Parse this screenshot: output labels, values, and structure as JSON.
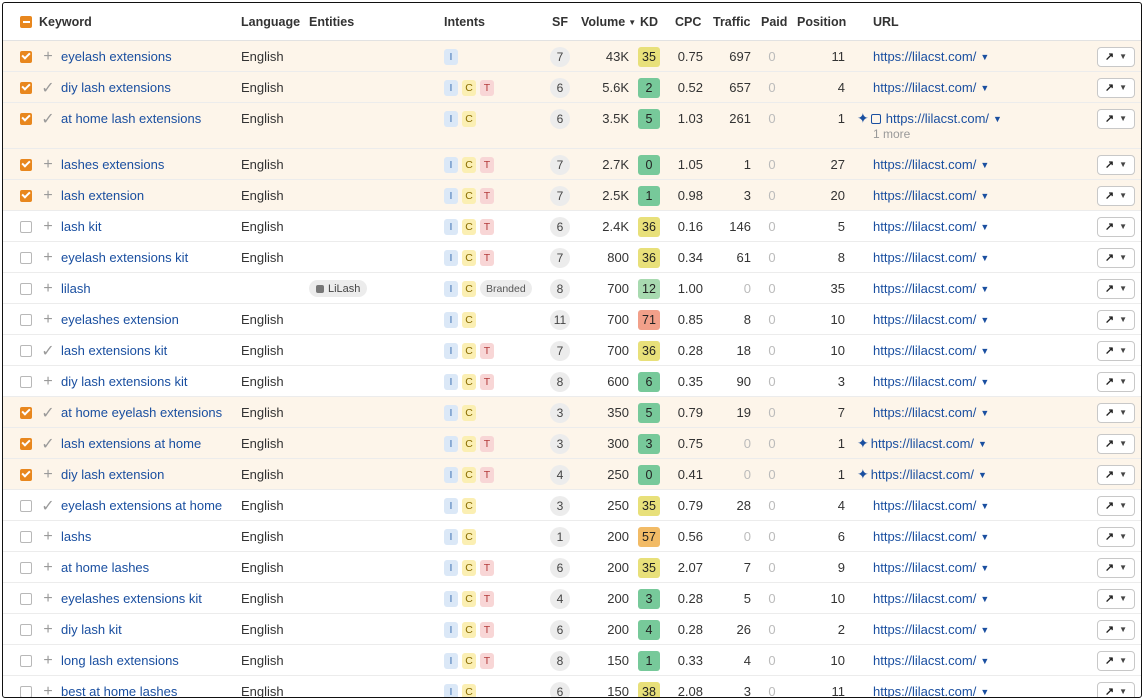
{
  "header": {
    "keyword": "Keyword",
    "language": "Language",
    "entities": "Entities",
    "intents": "Intents",
    "sf": "SF",
    "volume": "Volume",
    "kd": "KD",
    "cpc": "CPC",
    "traffic": "Traffic",
    "paid": "Paid",
    "position": "Position",
    "url": "URL"
  },
  "colors": {
    "selected_row": "#fdf5ea",
    "checkbox": "#e8871e",
    "link": "#1a4fa0",
    "kd_green": "#77c99a",
    "kd_lightgreen": "#a8dab0",
    "kd_yellow": "#e8e07a",
    "kd_orange": "#f2bb66",
    "kd_red": "#f2a08a"
  },
  "rows": [
    {
      "checked": true,
      "action": "plus",
      "keyword": "eyelash extensions",
      "language": "English",
      "entity": "",
      "intents": [
        "I"
      ],
      "sf": "7",
      "volume": "43K",
      "kd": "35",
      "kd_color": "#e8e07a",
      "cpc": "0.75",
      "traffic": "697",
      "paid": "0",
      "position": "11",
      "url": "https://lilacst.com/",
      "sparkle": false
    },
    {
      "checked": true,
      "action": "check",
      "keyword": "diy lash extensions",
      "language": "English",
      "entity": "",
      "intents": [
        "I",
        "C",
        "T"
      ],
      "sf": "6",
      "volume": "5.6K",
      "kd": "2",
      "kd_color": "#77c99a",
      "cpc": "0.52",
      "traffic": "657",
      "paid": "0",
      "position": "4",
      "url": "https://lilacst.com/",
      "sparkle": false
    },
    {
      "checked": true,
      "action": "check",
      "keyword": "at home lash extensions",
      "language": "English",
      "entity": "",
      "intents": [
        "I",
        "C"
      ],
      "sf": "6",
      "volume": "3.5K",
      "kd": "5",
      "kd_color": "#77c99a",
      "cpc": "1.03",
      "traffic": "261",
      "paid": "0",
      "position": "1",
      "url": "https://lilacst.com/",
      "sparkle": true,
      "image": true,
      "more": "1 more"
    },
    {
      "checked": true,
      "action": "plus",
      "keyword": "lashes extensions",
      "language": "English",
      "entity": "",
      "intents": [
        "I",
        "C",
        "T"
      ],
      "sf": "7",
      "volume": "2.7K",
      "kd": "0",
      "kd_color": "#77c99a",
      "cpc": "1.05",
      "traffic": "1",
      "paid": "0",
      "position": "27",
      "url": "https://lilacst.com/",
      "sparkle": false
    },
    {
      "checked": true,
      "action": "plus",
      "keyword": "lash extension",
      "language": "English",
      "entity": "",
      "intents": [
        "I",
        "C",
        "T"
      ],
      "sf": "7",
      "volume": "2.5K",
      "kd": "1",
      "kd_color": "#77c99a",
      "cpc": "0.98",
      "traffic": "3",
      "paid": "0",
      "position": "20",
      "url": "https://lilacst.com/",
      "sparkle": false
    },
    {
      "checked": false,
      "action": "plus",
      "keyword": "lash kit",
      "language": "English",
      "entity": "",
      "intents": [
        "I",
        "C",
        "T"
      ],
      "sf": "6",
      "volume": "2.4K",
      "kd": "36",
      "kd_color": "#e8e07a",
      "cpc": "0.16",
      "traffic": "146",
      "paid": "0",
      "position": "5",
      "url": "https://lilacst.com/",
      "sparkle": false
    },
    {
      "checked": false,
      "action": "plus",
      "keyword": "eyelash extensions kit",
      "language": "English",
      "entity": "",
      "intents": [
        "I",
        "C",
        "T"
      ],
      "sf": "7",
      "volume": "800",
      "kd": "36",
      "kd_color": "#e8e07a",
      "cpc": "0.34",
      "traffic": "61",
      "paid": "0",
      "position": "8",
      "url": "https://lilacst.com/",
      "sparkle": false
    },
    {
      "checked": false,
      "action": "plus",
      "keyword": "lilash",
      "language": "",
      "entity": "LiLash",
      "intents": [
        "I",
        "C",
        "Branded"
      ],
      "sf": "8",
      "volume": "700",
      "kd": "12",
      "kd_color": "#a8dab0",
      "cpc": "1.00",
      "traffic": "0",
      "traffic_dim": true,
      "paid": "0",
      "position": "35",
      "url": "https://lilacst.com/",
      "sparkle": false
    },
    {
      "checked": false,
      "action": "plus",
      "keyword": "eyelashes extension",
      "language": "English",
      "entity": "",
      "intents": [
        "I",
        "C"
      ],
      "sf": "11",
      "volume": "700",
      "kd": "71",
      "kd_color": "#f2a08a",
      "cpc": "0.85",
      "traffic": "8",
      "paid": "0",
      "position": "10",
      "url": "https://lilacst.com/",
      "sparkle": false
    },
    {
      "checked": false,
      "action": "check",
      "keyword": "lash extensions kit",
      "language": "English",
      "entity": "",
      "intents": [
        "I",
        "C",
        "T"
      ],
      "sf": "7",
      "volume": "700",
      "kd": "36",
      "kd_color": "#e8e07a",
      "cpc": "0.28",
      "traffic": "18",
      "paid": "0",
      "position": "10",
      "url": "https://lilacst.com/",
      "sparkle": false
    },
    {
      "checked": false,
      "action": "plus",
      "keyword": "diy lash extensions kit",
      "language": "English",
      "entity": "",
      "intents": [
        "I",
        "C",
        "T"
      ],
      "sf": "8",
      "volume": "600",
      "kd": "6",
      "kd_color": "#77c99a",
      "cpc": "0.35",
      "traffic": "90",
      "paid": "0",
      "position": "3",
      "url": "https://lilacst.com/",
      "sparkle": false
    },
    {
      "checked": true,
      "action": "check",
      "keyword": "at home eyelash extensions",
      "language": "English",
      "entity": "",
      "intents": [
        "I",
        "C"
      ],
      "sf": "3",
      "volume": "350",
      "kd": "5",
      "kd_color": "#77c99a",
      "cpc": "0.79",
      "traffic": "19",
      "paid": "0",
      "position": "7",
      "url": "https://lilacst.com/",
      "sparkle": false
    },
    {
      "checked": true,
      "action": "check",
      "keyword": "lash extensions at home",
      "language": "English",
      "entity": "",
      "intents": [
        "I",
        "C",
        "T"
      ],
      "sf": "3",
      "volume": "300",
      "kd": "3",
      "kd_color": "#77c99a",
      "cpc": "0.75",
      "traffic": "0",
      "traffic_dim": true,
      "paid": "0",
      "position": "1",
      "url": "https://lilacst.com/",
      "sparkle": true
    },
    {
      "checked": true,
      "action": "plus",
      "keyword": "diy lash extension",
      "language": "English",
      "entity": "",
      "intents": [
        "I",
        "C",
        "T"
      ],
      "sf": "4",
      "volume": "250",
      "kd": "0",
      "kd_color": "#77c99a",
      "cpc": "0.41",
      "traffic": "0",
      "traffic_dim": true,
      "paid": "0",
      "position": "1",
      "url": "https://lilacst.com/",
      "sparkle": true
    },
    {
      "checked": false,
      "action": "check",
      "keyword": "eyelash extensions at home",
      "language": "English",
      "entity": "",
      "intents": [
        "I",
        "C"
      ],
      "sf": "3",
      "volume": "250",
      "kd": "35",
      "kd_color": "#e8e07a",
      "cpc": "0.79",
      "traffic": "28",
      "paid": "0",
      "position": "4",
      "url": "https://lilacst.com/",
      "sparkle": false
    },
    {
      "checked": false,
      "action": "plus",
      "keyword": "lashs",
      "language": "English",
      "entity": "",
      "intents": [
        "I",
        "C"
      ],
      "sf": "1",
      "volume": "200",
      "kd": "57",
      "kd_color": "#f2bb66",
      "cpc": "0.56",
      "traffic": "0",
      "traffic_dim": true,
      "paid": "0",
      "position": "6",
      "url": "https://lilacst.com/",
      "sparkle": false
    },
    {
      "checked": false,
      "action": "plus",
      "keyword": "at home lashes",
      "language": "English",
      "entity": "",
      "intents": [
        "I",
        "C",
        "T"
      ],
      "sf": "6",
      "volume": "200",
      "kd": "35",
      "kd_color": "#e8e07a",
      "cpc": "2.07",
      "traffic": "7",
      "paid": "0",
      "position": "9",
      "url": "https://lilacst.com/",
      "sparkle": false
    },
    {
      "checked": false,
      "action": "plus",
      "keyword": "eyelashes extensions kit",
      "language": "English",
      "entity": "",
      "intents": [
        "I",
        "C",
        "T"
      ],
      "sf": "4",
      "volume": "200",
      "kd": "3",
      "kd_color": "#77c99a",
      "cpc": "0.28",
      "traffic": "5",
      "paid": "0",
      "position": "10",
      "url": "https://lilacst.com/",
      "sparkle": false
    },
    {
      "checked": false,
      "action": "plus",
      "keyword": "diy lash kit",
      "language": "English",
      "entity": "",
      "intents": [
        "I",
        "C",
        "T"
      ],
      "sf": "6",
      "volume": "200",
      "kd": "4",
      "kd_color": "#77c99a",
      "cpc": "0.28",
      "traffic": "26",
      "paid": "0",
      "position": "2",
      "url": "https://lilacst.com/",
      "sparkle": false
    },
    {
      "checked": false,
      "action": "plus",
      "keyword": "long lash extensions",
      "language": "English",
      "entity": "",
      "intents": [
        "I",
        "C",
        "T"
      ],
      "sf": "8",
      "volume": "150",
      "kd": "1",
      "kd_color": "#77c99a",
      "cpc": "0.33",
      "traffic": "4",
      "paid": "0",
      "position": "10",
      "url": "https://lilacst.com/",
      "sparkle": false
    },
    {
      "checked": false,
      "action": "plus",
      "keyword": "best at home lashes",
      "language": "English",
      "entity": "",
      "intents": [
        "I",
        "C"
      ],
      "sf": "6",
      "volume": "150",
      "kd": "38",
      "kd_color": "#e8e07a",
      "cpc": "2.08",
      "traffic": "3",
      "paid": "0",
      "position": "11",
      "url": "https://lilacst.com/",
      "sparkle": false
    }
  ]
}
